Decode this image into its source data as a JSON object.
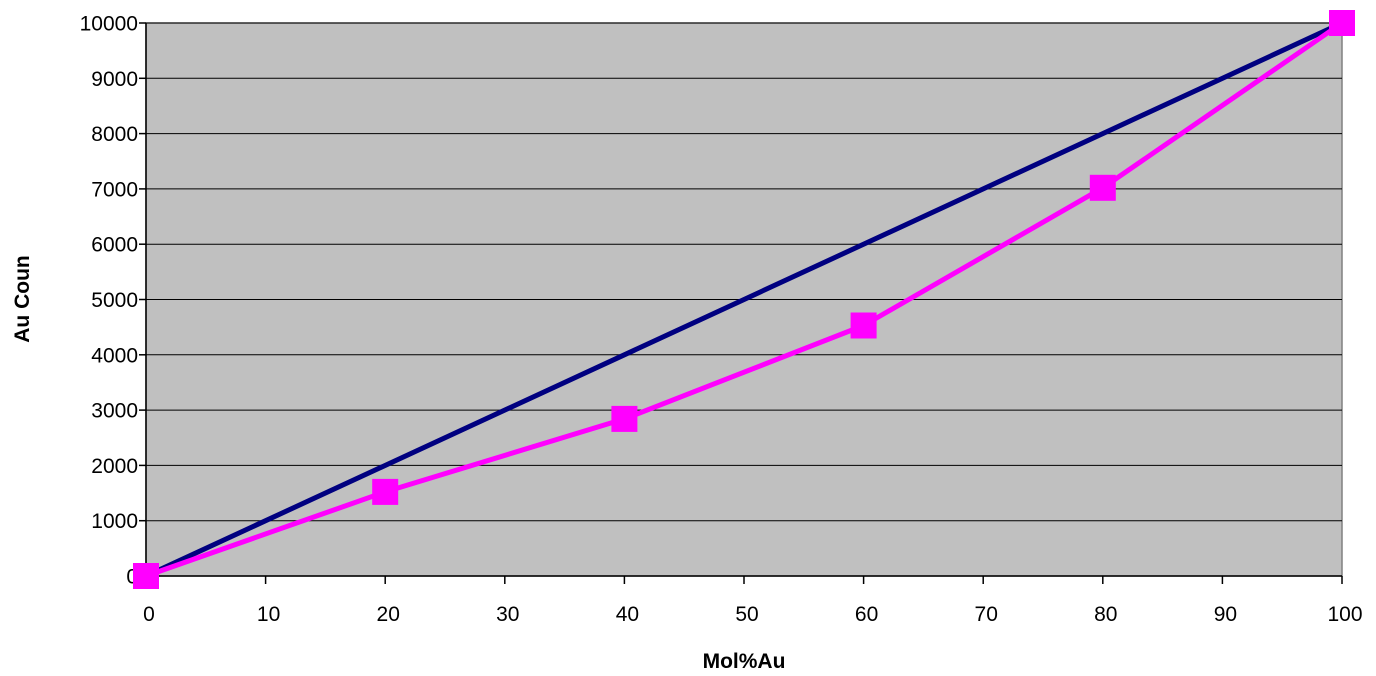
{
  "chart_data": {
    "type": "line",
    "title": "",
    "xlabel": "Mol%Au",
    "ylabel": "Au Coun",
    "xlim": [
      0,
      100
    ],
    "ylim": [
      0,
      10000
    ],
    "x_ticks": [
      0,
      10,
      20,
      30,
      40,
      50,
      60,
      70,
      80,
      90,
      100
    ],
    "y_ticks": [
      0,
      1000,
      2000,
      3000,
      4000,
      5000,
      6000,
      7000,
      8000,
      9000,
      10000
    ],
    "grid": true,
    "plot_background": "#C0C0C0",
    "series": [
      {
        "color": "#000080",
        "marker": "none",
        "x": [
          0,
          100
        ],
        "y": [
          0,
          10000
        ]
      },
      {
        "color": "#FF00FF",
        "marker": "square",
        "x": [
          0,
          20,
          40,
          60,
          80,
          100
        ],
        "y": [
          0,
          1520,
          2840,
          4530,
          7020,
          10000
        ]
      }
    ]
  }
}
